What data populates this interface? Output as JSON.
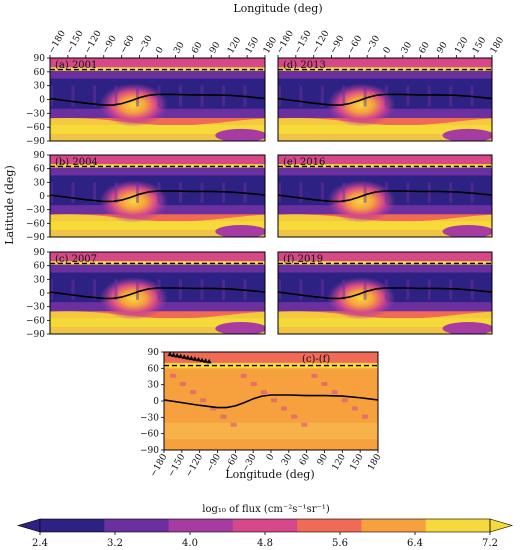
{
  "figure": {
    "top_axis_label": "Longitude (deg)",
    "bottom_axis_label": "Longitude (deg)",
    "y_axis_label": "Latitude (deg)",
    "colorbar_label": "log₁₀ of flux (cm⁻²s⁻¹sr⁻¹)"
  },
  "chart_data": {
    "type": "heatmap",
    "x_ticks": [
      -180,
      -150,
      -120,
      -90,
      -60,
      -30,
      0,
      30,
      60,
      90,
      120,
      150,
      180
    ],
    "y_ticks": [
      90,
      60,
      30,
      0,
      -30,
      -60,
      -90
    ],
    "xlim": [
      -180,
      180
    ],
    "ylim": [
      -90,
      90
    ],
    "dashed_line_latitude": 65,
    "panels": [
      {
        "id": "a",
        "label": "(a) 2001"
      },
      {
        "id": "d",
        "label": "(d) 2013"
      },
      {
        "id": "b",
        "label": "(b) 2004"
      },
      {
        "id": "e",
        "label": "(e) 2016"
      },
      {
        "id": "c",
        "label": "(c) 2007"
      },
      {
        "id": "f",
        "label": "(f) 2019"
      },
      {
        "id": "cf",
        "label": "(c)-(f)"
      }
    ],
    "magnetic_equator": {
      "lon": [
        -180,
        -150,
        -120,
        -90,
        -75,
        -60,
        -45,
        -30,
        -15,
        0,
        30,
        60,
        90,
        120,
        150,
        180
      ],
      "lat": [
        2,
        -3,
        -8,
        -12,
        -12,
        -9,
        -3,
        4,
        9,
        11,
        11,
        10,
        10,
        9,
        6,
        2
      ]
    },
    "colorbar": {
      "ticks": [
        2.4,
        3.2,
        4.0,
        4.8,
        5.6,
        6.4,
        7.2
      ],
      "colors": [
        "#2d2283",
        "#6b2fa0",
        "#a63ca1",
        "#d7488a",
        "#f06a55",
        "#f7a13e",
        "#f6d93a"
      ],
      "extend": "both"
    }
  }
}
